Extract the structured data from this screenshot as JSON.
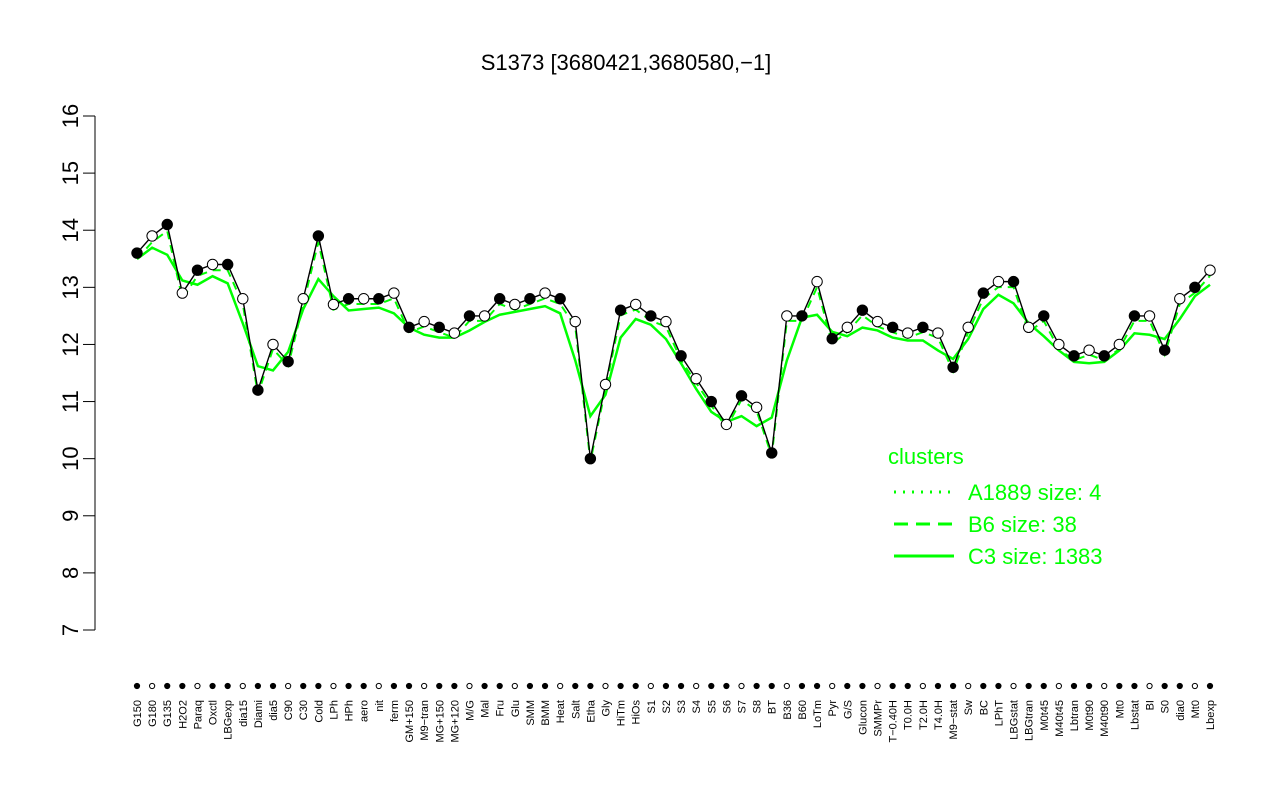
{
  "chart_data": {
    "type": "line",
    "title": "S1373 [3680421,3680580,−1]",
    "xlabel": "",
    "ylabel": "",
    "ylim": [
      7,
      16
    ],
    "y_ticks": [
      7,
      8,
      9,
      10,
      11,
      12,
      13,
      14,
      15,
      16
    ],
    "grid": false,
    "x_tick_labels": [
      "G150",
      "G180",
      "G135",
      "H2O2",
      "Paraq",
      "Oxctl",
      "LBGexp",
      "dia15",
      "Diami",
      "dia5",
      "C90",
      "C30",
      "Cold",
      "LPh",
      "HPh",
      "aero",
      "nit",
      "ferm",
      "GM+150",
      "M9−tran",
      "MG+150",
      "MG+120",
      "M/G",
      "Mal",
      "Fru",
      "Glu",
      "SMM",
      "BMM",
      "Heat",
      "Salt",
      "Etha",
      "Gly",
      "HiTm",
      "HiOs",
      "S1",
      "S2",
      "S3",
      "S4",
      "S5",
      "S6",
      "S7",
      "S8",
      "BT",
      "B36",
      "B60",
      "LoTm",
      "Pyr",
      "G/S",
      "Glucon",
      "SMMPr",
      "T−0.40H",
      "T0.0H",
      "T2.0H",
      "T4.0H",
      "M9−stat",
      "Sw",
      "BC",
      "LPhT",
      "LBGstat",
      "LBGtran",
      "M0t45",
      "M40t45",
      "Lbtran",
      "M0t90",
      "M40t90",
      "Mt0",
      "Lbstat",
      "BI",
      "S0",
      "dia0",
      "Mt0",
      "Lbexp"
    ],
    "series": [
      {
        "values": [
          13.6,
          13.9,
          14.1,
          12.9,
          13.3,
          13.4,
          13.4,
          12.8,
          11.2,
          12.0,
          11.7,
          12.8,
          13.9,
          12.7,
          12.8,
          12.8,
          12.8,
          12.9,
          12.3,
          12.4,
          12.3,
          12.2,
          12.5,
          12.5,
          12.8,
          12.7,
          12.8,
          12.9,
          12.8,
          12.4,
          10.0,
          11.3,
          12.6,
          12.7,
          12.5,
          12.4,
          11.8,
          11.4,
          11.0,
          10.6,
          11.1,
          10.9,
          10.1,
          12.5,
          12.5,
          13.1,
          12.1,
          12.3,
          12.6,
          12.4,
          12.3,
          12.2,
          12.3,
          12.2,
          11.6,
          12.3,
          12.9,
          13.1,
          13.1,
          12.3,
          12.5,
          12.0,
          11.8,
          11.9,
          11.8,
          12.0,
          12.5,
          12.5,
          11.9,
          12.8,
          13.0,
          13.3
        ]
      }
    ],
    "legend": {
      "title": "clusters",
      "placement": "right",
      "entries": [
        "A1889 size: 4",
        "B6 size: 38",
        "C3 size: 1383"
      ]
    },
    "colors": {
      "points_fill_black": "#000000",
      "points_fill_white": "#ffffff",
      "line": "#000000",
      "cluster": "#00ff00"
    }
  }
}
